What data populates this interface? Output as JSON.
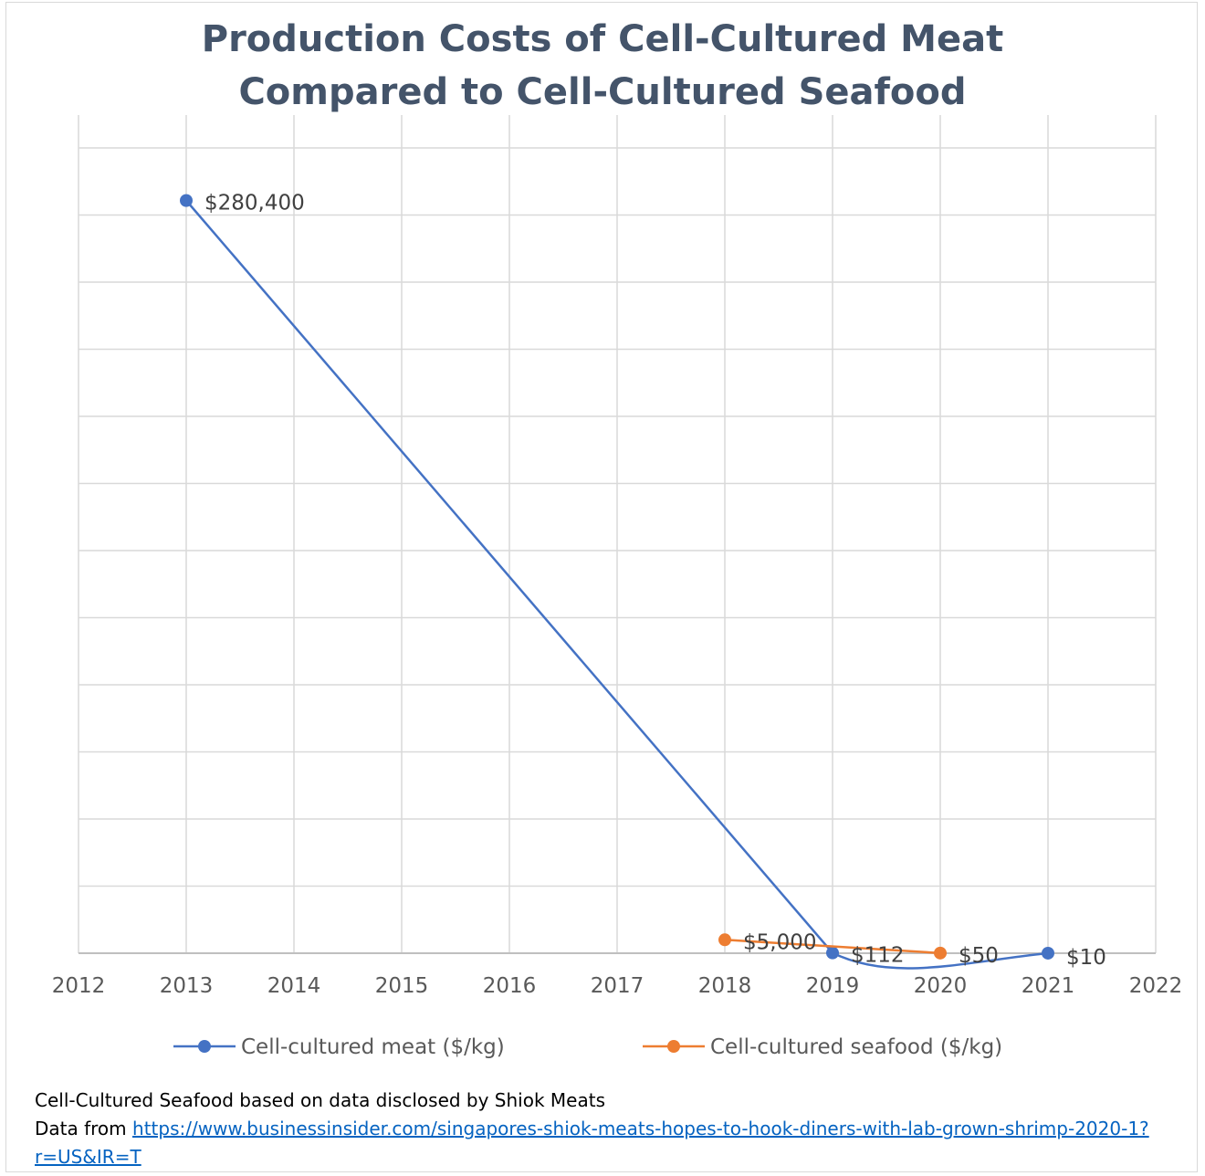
{
  "chart_data": {
    "type": "line",
    "title_lines": [
      "Production Costs of Cell-Cultured Meat",
      "Compared to Cell-Cultured Seafood"
    ],
    "xlim": [
      2012,
      2022
    ],
    "x_ticks": [
      "2012",
      "2013",
      "2014",
      "2015",
      "2016",
      "2017",
      "2018",
      "2019",
      "2020",
      "2021",
      "2022"
    ],
    "ylim": [
      0,
      300000
    ],
    "y_scale_note": "no y-axis tick labels shown",
    "series": [
      {
        "name": "Cell-cultured meat ($/kg)",
        "color": "#4472c4",
        "points": [
          {
            "x": 2013,
            "y": 280400,
            "label": "$280,400"
          },
          {
            "x": 2019,
            "y": 112,
            "label": "$112"
          },
          {
            "x": 2021,
            "y": 10,
            "label": "$10"
          }
        ]
      },
      {
        "name": "Cell-cultured seafood ($/kg)",
        "color": "#ed7d31",
        "points": [
          {
            "x": 2018,
            "y": 5000,
            "label": "$5,000"
          },
          {
            "x": 2020,
            "y": 50,
            "label": "$50"
          }
        ]
      }
    ],
    "legend_position": "bottom"
  },
  "colors": {
    "grid": "#d9d9d9",
    "axis": "#bfbfbf",
    "title": "#44546a"
  },
  "footnote": {
    "line1": "Cell-Cultured Seafood based on data disclosed by Shiok Meats",
    "prefix": "Data from ",
    "link_text": "https://www.businessinsider.com/singapores-shiok-meats-hopes-to-hook-diners-with-lab-grown-shrimp-2020-1?r=US&IR=T"
  }
}
